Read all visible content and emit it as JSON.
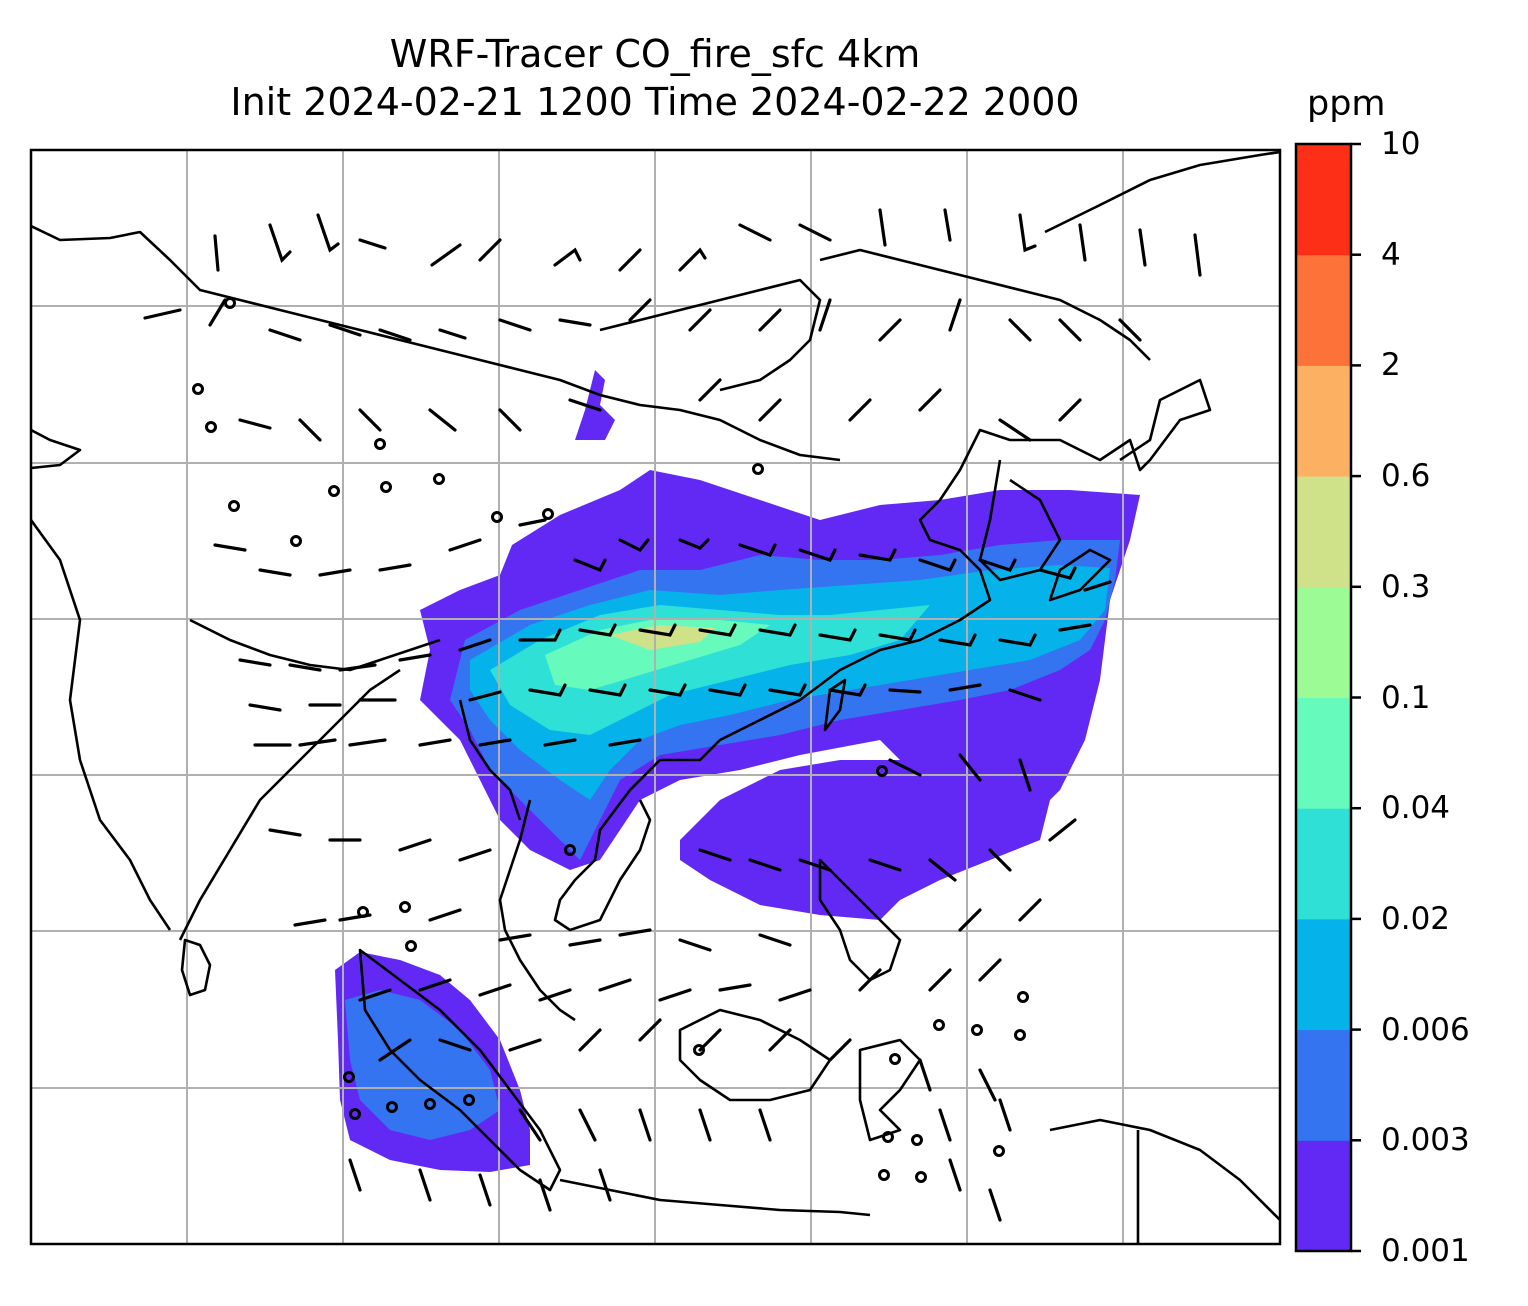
{
  "title": {
    "line1": "WRF-Tracer CO_fire_sfc 4km",
    "line2": "Init 2024-02-21 1200 Time 2024-02-22 2000"
  },
  "colorbar": {
    "units": "ppm",
    "levels": [
      "0.001",
      "0.003",
      "0.006",
      "0.02",
      "0.04",
      "0.1",
      "0.3",
      "0.6",
      "2",
      "4",
      "10"
    ],
    "colors": [
      "#6229f5",
      "#3574f0",
      "#06b2ea",
      "#2fe0d6",
      "#66fbbc",
      "#9cfb95",
      "#cfe189",
      "#fcb162",
      "#fd7239",
      "#fe2f17"
    ]
  },
  "map": {
    "coastline_color": "#000000",
    "gridline_color": "#b0b0b0",
    "plume_colors": {
      "lowest": "#6229f5",
      "low": "#3574f0",
      "mid": "#06b2ea",
      "midhigh": "#2fe0d6",
      "high": "#66fbbc",
      "peak": "#9cfb95",
      "top": "#cfe189"
    }
  }
}
